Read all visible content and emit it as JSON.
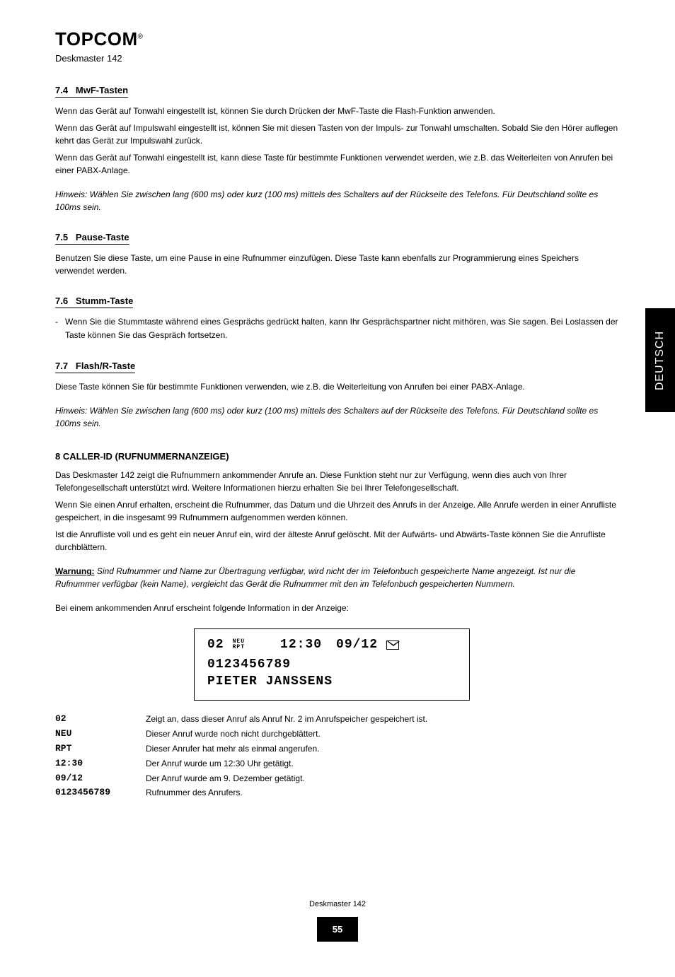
{
  "brand": "TOPCOM",
  "brand_tm": "®",
  "product": "Deskmaster 142",
  "side_tab": "DEUTSCH",
  "sections": {
    "s1": {
      "num": "7.4",
      "title": "MwF-Tasten"
    },
    "s1_body": "Wenn das Gerät auf Tonwahl eingestellt ist, können Sie durch Drücken der MwF-Taste die Flash-Funktion anwenden.",
    "s1_body2": "Wenn das Gerät auf Impulswahl eingestellt ist, können Sie mit diesen Tasten von der Impuls- zur Tonwahl umschalten. Sobald Sie den Hörer auflegen kehrt das Gerät zur Impulswahl zurück.",
    "s1_body3": "Wenn das Gerät auf Tonwahl eingestellt ist, kann diese Taste für bestimmte Funktionen verwendet werden, wie z.B. das Weiterleiten von Anrufen bei einer PABX-Anlage.",
    "s1_note": "Hinweis: Wählen Sie zwischen lang (600 ms) oder kurz (100 ms) mittels des Schalters auf der Rückseite des Telefons. Für Deutschland sollte es 100ms sein.",
    "s2": {
      "num": "7.5",
      "title": "Pause-Taste"
    },
    "s2_body": "Benutzen Sie diese Taste, um eine Pause in eine Rufnummer einzufügen. Diese Taste kann ebenfalls zur Programmierung eines Speichers verwendet werden.",
    "s3": {
      "num": "7.6",
      "title": "Stumm-Taste"
    },
    "s3_body": "Wenn Sie die Stummtaste während eines Gesprächs gedrückt halten, kann Ihr Gesprächspartner nicht mithören, was Sie sagen. Bei Loslassen der Taste können Sie das Gespräch fortsetzen.",
    "s4": {
      "num": "7.7",
      "title": "Flash/R-Taste"
    },
    "s4_body": "Diese Taste können Sie für bestimmte Funktionen verwenden, wie z.B. die Weiterleitung von Anrufen bei einer PABX-Anlage.",
    "s4_note": "Hinweis: Wählen Sie zwischen lang (600 ms) oder kurz (100 ms) mittels des Schalters auf der Rückseite des Telefons. Für Deutschland sollte es 100ms sein.",
    "h8": "8 CALLER-ID (RUFNUMMERNANZEIGE)",
    "h8_body": "Das Deskmaster 142 zeigt die Rufnummern ankommender Anrufe an. Diese Funktion steht nur zur Verfügung, wenn dies auch von Ihrer Telefongesellschaft unterstützt wird. Weitere Informationen hierzu erhalten Sie bei Ihrer Telefongesellschaft.",
    "h8_body2": "Wenn Sie einen Anruf erhalten, erscheint die Rufnummer, das Datum und die Uhrzeit des Anrufs in der Anzeige. Alle Anrufe werden in einer Anrufliste gespeichert, in die insgesamt 99 Rufnummern aufgenommen werden können.",
    "h8_body3": "Ist die Anrufliste voll und es geht ein neuer Anruf ein, wird der älteste Anruf gelöscht. Mit der Aufwärts- und Abwärts-Taste können Sie die Anrufliste durchblättern.",
    "h8_body4": "Bei einem ankommenden Anruf erscheint folgende Information in der Anzeige:",
    "lcd": {
      "seq": "02",
      "neu": "NEU",
      "rpt": "RPT",
      "time": "12:30",
      "date": "09/12",
      "number": "0123456789",
      "name": "PIETER JANSSENS"
    },
    "legend": {
      "l1_label": "02",
      "l1_desc": "Zeigt an, dass dieser Anruf als Anruf Nr. 2 im Anrufspeicher gespeichert ist.",
      "l2_label": "NEU",
      "l2_desc": "Dieser Anruf wurde noch nicht durchgeblättert.",
      "l3_label": "RPT",
      "l3_desc": "Dieser Anrufer hat mehr als einmal angerufen.",
      "l4_label": "12:30",
      "l4_desc": "Der Anruf wurde um 12:30 Uhr getätigt.",
      "l5_label": "09/12",
      "l5_desc": "Der Anruf wurde am 9. Dezember getätigt.",
      "l6_label": "0123456789",
      "l6_desc": "Rufnummer des Anrufers."
    },
    "warn_label": "Warnung:",
    "warn_body": "Sind Rufnummer und Name zur Übertragung verfügbar, wird nicht der im Telefonbuch gespeicherte Name angezeigt. Ist nur die Rufnummer verfügbar (kein Name), vergleicht das Gerät die Rufnummer mit den im Telefonbuch gespeicherten Nummern."
  },
  "footer": {
    "product_line": "Deskmaster 142",
    "page": "55"
  }
}
